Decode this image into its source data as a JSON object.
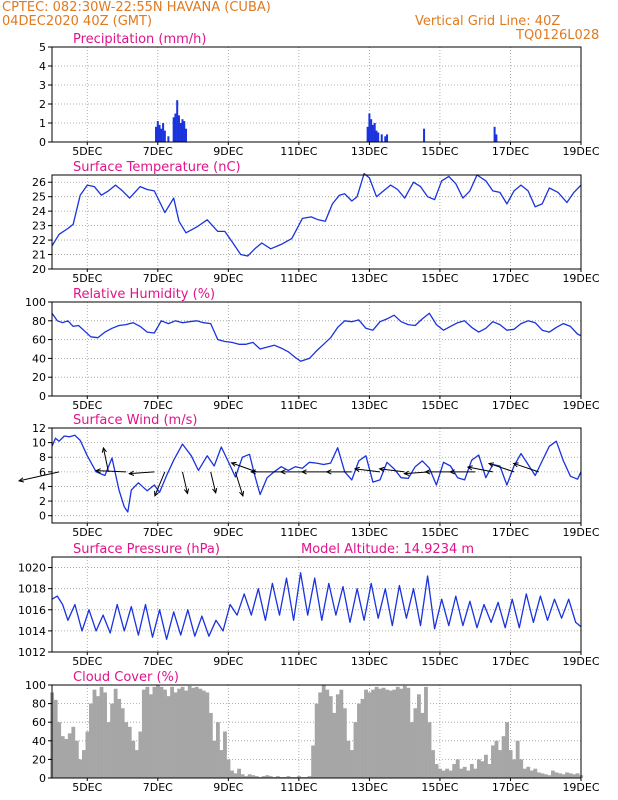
{
  "header": {
    "line1": "CPTEC:   082:30W-22:55N   HAVANA (CUBA)",
    "line2": "04DEC2020 40Z (GMT)",
    "grid_note": "Vertical Grid Line: 40Z",
    "model_code": "TQ0126L028",
    "altitude_label": "Model Altitude: 14.9234 m"
  },
  "colors": {
    "header": "#e07a20",
    "titles": "#e0148c",
    "series": "#1a33dd",
    "cloud": "#a6a6a6",
    "arrows": "#000000"
  },
  "x_axis": {
    "range": [
      4,
      19
    ],
    "ticks": [
      5,
      7,
      9,
      11,
      13,
      15,
      17,
      19
    ],
    "tick_labels": [
      "5DEC",
      "7DEC",
      "9DEC",
      "11DEC",
      "13DEC",
      "15DEC",
      "17DEC",
      "19DEC"
    ]
  },
  "chart_data": [
    {
      "type": "bar",
      "title": "Precipitation (mm/h)",
      "ylim": [
        0,
        5
      ],
      "yticks": [
        0,
        1,
        2,
        3,
        4,
        5
      ],
      "grid": true,
      "x": [
        6.95,
        7.0,
        7.05,
        7.1,
        7.15,
        7.2,
        7.3,
        7.45,
        7.5,
        7.55,
        7.6,
        7.65,
        7.7,
        7.75,
        7.8,
        12.95,
        13.0,
        13.05,
        13.1,
        13.15,
        13.2,
        13.25,
        13.35,
        13.45,
        13.5,
        14.55,
        16.55,
        16.6
      ],
      "values": [
        0.8,
        1.1,
        0.9,
        0.7,
        1.0,
        0.6,
        0.3,
        1.3,
        1.5,
        2.2,
        1.4,
        1.0,
        1.2,
        1.1,
        0.7,
        0.8,
        1.5,
        1.2,
        0.9,
        1.0,
        0.6,
        0.5,
        0.4,
        0.3,
        0.4,
        0.7,
        0.8,
        0.4
      ]
    },
    {
      "type": "line",
      "title": "Surface Temperature (nC)",
      "ylim": [
        20,
        26.5
      ],
      "yticks": [
        20,
        21,
        22,
        23,
        24,
        25,
        26
      ],
      "grid": true,
      "x": [
        4.0,
        4.2,
        4.45,
        4.6,
        4.8,
        5.0,
        5.2,
        5.4,
        5.6,
        5.8,
        6.0,
        6.2,
        6.5,
        6.7,
        6.9,
        7.2,
        7.45,
        7.6,
        7.8,
        8.1,
        8.4,
        8.7,
        8.9,
        9.1,
        9.35,
        9.55,
        9.75,
        9.95,
        10.2,
        10.5,
        10.8,
        11.1,
        11.35,
        11.55,
        11.75,
        11.95,
        12.15,
        12.3,
        12.5,
        12.65,
        12.85,
        13.0,
        13.2,
        13.4,
        13.6,
        13.8,
        14.0,
        14.25,
        14.45,
        14.65,
        14.85,
        15.05,
        15.25,
        15.45,
        15.65,
        15.85,
        16.05,
        16.3,
        16.5,
        16.7,
        16.9,
        17.1,
        17.3,
        17.5,
        17.7,
        17.9,
        18.1,
        18.35,
        18.6,
        18.8,
        19.0
      ],
      "values": [
        21.6,
        22.4,
        22.8,
        23.1,
        25.1,
        25.8,
        25.7,
        25.1,
        25.4,
        25.8,
        25.4,
        24.9,
        25.7,
        25.5,
        25.4,
        23.9,
        24.9,
        23.3,
        22.5,
        22.9,
        23.4,
        22.6,
        22.6,
        21.9,
        21.0,
        20.9,
        21.4,
        21.8,
        21.4,
        21.7,
        22.1,
        23.5,
        23.6,
        23.4,
        23.3,
        24.5,
        25.1,
        25.2,
        24.7,
        25.0,
        26.6,
        26.3,
        25.0,
        25.4,
        25.8,
        25.5,
        24.9,
        26.0,
        25.7,
        25.0,
        24.8,
        26.1,
        26.4,
        25.9,
        24.9,
        25.4,
        26.5,
        26.1,
        25.4,
        25.3,
        24.5,
        25.4,
        25.8,
        25.4,
        24.3,
        24.5,
        25.6,
        25.3,
        24.6,
        25.3,
        25.8
      ]
    },
    {
      "type": "line",
      "title": "Relative Humidity (%)",
      "ylim": [
        0,
        100
      ],
      "yticks": [
        0,
        20,
        40,
        60,
        80,
        100
      ],
      "grid": true,
      "x": [
        4.0,
        4.15,
        4.3,
        4.45,
        4.6,
        4.75,
        4.9,
        5.1,
        5.3,
        5.5,
        5.7,
        5.9,
        6.1,
        6.3,
        6.5,
        6.7,
        6.9,
        7.1,
        7.3,
        7.5,
        7.7,
        7.9,
        8.1,
        8.3,
        8.5,
        8.7,
        8.9,
        9.1,
        9.3,
        9.5,
        9.7,
        9.9,
        10.1,
        10.3,
        10.5,
        10.7,
        10.9,
        11.05,
        11.3,
        11.5,
        11.7,
        11.9,
        12.1,
        12.3,
        12.5,
        12.7,
        12.9,
        13.1,
        13.3,
        13.5,
        13.7,
        13.9,
        14.1,
        14.3,
        14.5,
        14.7,
        14.9,
        15.1,
        15.3,
        15.5,
        15.7,
        15.9,
        16.1,
        16.3,
        16.5,
        16.7,
        16.9,
        17.1,
        17.3,
        17.5,
        17.7,
        17.9,
        18.1,
        18.3,
        18.5,
        18.7,
        18.9,
        19.0
      ],
      "values": [
        88,
        80,
        78,
        80,
        74,
        75,
        70,
        63,
        62,
        68,
        72,
        75,
        76,
        78,
        74,
        68,
        67,
        80,
        77,
        80,
        78,
        79,
        80,
        78,
        77,
        60,
        58,
        57,
        55,
        55,
        57,
        50,
        52,
        54,
        51,
        47,
        41,
        37,
        40,
        48,
        55,
        62,
        73,
        80,
        79,
        81,
        72,
        70,
        79,
        82,
        86,
        79,
        76,
        75,
        82,
        88,
        76,
        70,
        74,
        78,
        80,
        73,
        68,
        72,
        79,
        76,
        70,
        71,
        77,
        80,
        78,
        70,
        68,
        73,
        77,
        74,
        66,
        64
      ]
    },
    {
      "type": "line",
      "title": "Surface Wind (m/s)",
      "ylim": [
        -1,
        12
      ],
      "yticks": [
        0,
        2,
        4,
        6,
        8,
        10,
        12
      ],
      "grid": true,
      "x": [
        4.0,
        4.1,
        4.2,
        4.35,
        4.5,
        4.65,
        4.8,
        5.0,
        5.25,
        5.5,
        5.7,
        5.9,
        6.05,
        6.15,
        6.25,
        6.45,
        6.7,
        6.9,
        7.05,
        7.25,
        7.45,
        7.7,
        7.95,
        8.15,
        8.4,
        8.6,
        8.8,
        9.0,
        9.2,
        9.4,
        9.6,
        9.75,
        9.9,
        10.1,
        10.3,
        10.5,
        10.7,
        10.9,
        11.1,
        11.3,
        11.5,
        11.7,
        11.9,
        12.1,
        12.3,
        12.5,
        12.7,
        12.9,
        13.1,
        13.3,
        13.5,
        13.7,
        13.9,
        14.1,
        14.3,
        14.5,
        14.7,
        14.9,
        15.1,
        15.3,
        15.5,
        15.7,
        15.9,
        16.1,
        16.3,
        16.5,
        16.7,
        16.9,
        17.1,
        17.3,
        17.5,
        17.7,
        17.9,
        18.1,
        18.3,
        18.5,
        18.7,
        18.9,
        19.0
      ],
      "values": [
        9.5,
        10.6,
        10.2,
        10.9,
        10.8,
        11.0,
        10.3,
        8.2,
        6.0,
        5.5,
        7.9,
        3.5,
        1.2,
        0.5,
        3.5,
        4.5,
        3.4,
        4.2,
        3.2,
        5.5,
        7.6,
        9.8,
        8.2,
        6.2,
        8.2,
        6.8,
        9.4,
        7.4,
        5.3,
        8.0,
        8.4,
        5.5,
        2.9,
        5.2,
        6.0,
        6.7,
        6.2,
        6.7,
        6.5,
        7.3,
        7.2,
        7.0,
        7.2,
        9.3,
        6.0,
        4.9,
        7.5,
        8.2,
        4.6,
        4.9,
        7.3,
        6.4,
        5.2,
        5.1,
        6.7,
        7.5,
        6.5,
        4.2,
        7.3,
        6.8,
        5.2,
        4.9,
        7.6,
        8.3,
        5.2,
        7.0,
        6.8,
        4.2,
        6.8,
        8.5,
        7.0,
        5.5,
        7.5,
        9.5,
        10.2,
        7.5,
        5.4,
        5.0,
        6.0
      ],
      "arrows": [
        {
          "x": 4.2,
          "dx": 1.6,
          "dy": -1.5
        },
        {
          "x": 5.6,
          "dx": 0.2,
          "dy": 4.0
        },
        {
          "x": 6.1,
          "dx": 1.2,
          "dy": 0.2
        },
        {
          "x": 6.9,
          "dx": 1.0,
          "dy": -0.3
        },
        {
          "x": 7.2,
          "dx": 0.4,
          "dy": -4.0
        },
        {
          "x": 7.7,
          "dx": -0.2,
          "dy": -3.6
        },
        {
          "x": 8.5,
          "dx": -0.2,
          "dy": -3.5
        },
        {
          "x": 9.2,
          "dx": -0.3,
          "dy": -4.0
        },
        {
          "x": 9.8,
          "dx": 1.0,
          "dy": 1.5
        },
        {
          "x": 10.5,
          "dx": 1.2,
          "dy": 0.0
        },
        {
          "x": 11.2,
          "dx": 1.0,
          "dy": 0.0
        },
        {
          "x": 11.8,
          "dx": 1.0,
          "dy": 0.0
        },
        {
          "x": 12.5,
          "dx": 1.0,
          "dy": 0.0
        },
        {
          "x": 13.3,
          "dx": 1.0,
          "dy": 0.5
        },
        {
          "x": 14.0,
          "dx": 1.0,
          "dy": 0.5
        },
        {
          "x": 14.7,
          "dx": 1.0,
          "dy": -0.3
        },
        {
          "x": 15.3,
          "dx": 1.0,
          "dy": 0.0
        },
        {
          "x": 16.0,
          "dx": 1.0,
          "dy": 0.0
        },
        {
          "x": 16.5,
          "dx": 1.0,
          "dy": 0.8
        },
        {
          "x": 17.1,
          "dx": 1.0,
          "dy": 1.4
        },
        {
          "x": 17.8,
          "dx": 1.0,
          "dy": 1.4
        }
      ]
    },
    {
      "type": "line",
      "title": "Surface Pressure (hPa)",
      "ylim": [
        1012,
        1021
      ],
      "yticks": [
        1012,
        1014,
        1016,
        1018,
        1020
      ],
      "grid": true,
      "x": [
        4.0,
        4.15,
        4.3,
        4.45,
        4.65,
        4.85,
        5.05,
        5.25,
        5.45,
        5.65,
        5.85,
        6.05,
        6.25,
        6.45,
        6.65,
        6.85,
        7.05,
        7.25,
        7.45,
        7.65,
        7.85,
        8.05,
        8.25,
        8.45,
        8.65,
        8.85,
        9.05,
        9.25,
        9.45,
        9.65,
        9.85,
        10.05,
        10.25,
        10.45,
        10.65,
        10.85,
        11.05,
        11.25,
        11.45,
        11.65,
        11.85,
        12.05,
        12.25,
        12.45,
        12.65,
        12.85,
        13.05,
        13.25,
        13.45,
        13.65,
        13.85,
        14.05,
        14.25,
        14.45,
        14.65,
        14.85,
        15.05,
        15.25,
        15.45,
        15.65,
        15.85,
        16.05,
        16.25,
        16.45,
        16.65,
        16.85,
        17.05,
        17.25,
        17.45,
        17.65,
        17.85,
        18.05,
        18.25,
        18.45,
        18.65,
        18.85,
        19.0
      ],
      "values": [
        1017.0,
        1017.3,
        1016.5,
        1015.0,
        1016.5,
        1014.0,
        1016.0,
        1014.0,
        1015.5,
        1013.8,
        1016.5,
        1014.0,
        1016.3,
        1013.6,
        1016.5,
        1013.4,
        1016.0,
        1013.2,
        1015.8,
        1013.6,
        1016.0,
        1013.5,
        1015.4,
        1013.5,
        1015.0,
        1014.0,
        1016.5,
        1015.5,
        1017.5,
        1015.5,
        1018.0,
        1015.0,
        1018.5,
        1015.5,
        1019.0,
        1015.0,
        1019.5,
        1015.5,
        1019.0,
        1015.0,
        1018.5,
        1015.5,
        1018.2,
        1014.8,
        1018.0,
        1015.0,
        1018.5,
        1015.2,
        1018.0,
        1014.5,
        1018.3,
        1015.2,
        1018.0,
        1014.5,
        1019.2,
        1014.2,
        1017.0,
        1014.5,
        1017.3,
        1014.5,
        1016.8,
        1014.3,
        1016.5,
        1014.8,
        1016.7,
        1014.3,
        1017.0,
        1014.3,
        1017.5,
        1014.8,
        1017.3,
        1015.0,
        1017.0,
        1015.2,
        1017.0,
        1014.8,
        1014.4
      ]
    },
    {
      "type": "area",
      "title": "Cloud Cover (%)",
      "ylim": [
        0,
        100
      ],
      "yticks": [
        0,
        20,
        40,
        60,
        80,
        100
      ],
      "grid": true,
      "x": [
        4.0,
        4.1,
        4.2,
        4.3,
        4.4,
        4.5,
        4.6,
        4.7,
        4.8,
        4.9,
        5.0,
        5.1,
        5.2,
        5.3,
        5.4,
        5.5,
        5.6,
        5.7,
        5.8,
        5.9,
        6.0,
        6.1,
        6.2,
        6.3,
        6.4,
        6.5,
        6.6,
        6.7,
        6.8,
        6.9,
        7.0,
        7.1,
        7.2,
        7.3,
        7.4,
        7.5,
        7.6,
        7.7,
        7.8,
        7.9,
        8.0,
        8.1,
        8.2,
        8.3,
        8.4,
        8.5,
        8.6,
        8.7,
        8.8,
        8.9,
        9.0,
        9.1,
        9.2,
        9.3,
        9.4,
        9.5,
        9.6,
        9.7,
        9.8,
        9.9,
        10.0,
        10.1,
        10.2,
        10.3,
        10.4,
        10.5,
        10.6,
        10.7,
        10.8,
        10.9,
        11.0,
        11.1,
        11.2,
        11.3,
        11.4,
        11.5,
        11.6,
        11.7,
        11.8,
        11.9,
        12.0,
        12.1,
        12.2,
        12.3,
        12.4,
        12.5,
        12.6,
        12.7,
        12.8,
        12.9,
        13.0,
        13.1,
        13.2,
        13.3,
        13.4,
        13.5,
        13.6,
        13.7,
        13.8,
        13.9,
        14.0,
        14.1,
        14.2,
        14.3,
        14.4,
        14.5,
        14.6,
        14.7,
        14.8,
        14.9,
        15.0,
        15.1,
        15.2,
        15.3,
        15.4,
        15.5,
        15.6,
        15.7,
        15.8,
        15.9,
        16.0,
        16.1,
        16.2,
        16.3,
        16.4,
        16.5,
        16.6,
        16.7,
        16.8,
        16.9,
        17.0,
        17.1,
        17.2,
        17.3,
        17.4,
        17.5,
        17.6,
        17.7,
        17.8,
        17.9,
        18.0,
        18.1,
        18.2,
        18.3,
        18.4,
        18.5,
        18.6,
        18.7,
        18.8,
        18.9,
        19.0
      ],
      "values": [
        92,
        84,
        60,
        45,
        42,
        48,
        55,
        40,
        20,
        30,
        50,
        80,
        95,
        88,
        98,
        92,
        60,
        80,
        96,
        85,
        75,
        60,
        55,
        40,
        30,
        50,
        95,
        98,
        90,
        98,
        100,
        98,
        95,
        88,
        98,
        92,
        96,
        98,
        94,
        99,
        97,
        98,
        96,
        94,
        92,
        70,
        40,
        60,
        30,
        50,
        20,
        8,
        5,
        10,
        4,
        2,
        4,
        3,
        2,
        1,
        2,
        3,
        2,
        1,
        2,
        1,
        1,
        2,
        1,
        1,
        2,
        1,
        1,
        2,
        35,
        80,
        92,
        100,
        95,
        88,
        70,
        90,
        95,
        75,
        40,
        30,
        60,
        80,
        85,
        95,
        92,
        95,
        98,
        96,
        97,
        95,
        94,
        95,
        98,
        96,
        99,
        97,
        60,
        75,
        90,
        70,
        98,
        60,
        30,
        15,
        10,
        8,
        10,
        8,
        15,
        20,
        10,
        12,
        8,
        15,
        10,
        20,
        18,
        25,
        15,
        35,
        40,
        30,
        45,
        60,
        30,
        20,
        40,
        20,
        10,
        12,
        8,
        10,
        6,
        5,
        4,
        3,
        8,
        6,
        5,
        4,
        6,
        5,
        4,
        5,
        3
      ]
    }
  ]
}
